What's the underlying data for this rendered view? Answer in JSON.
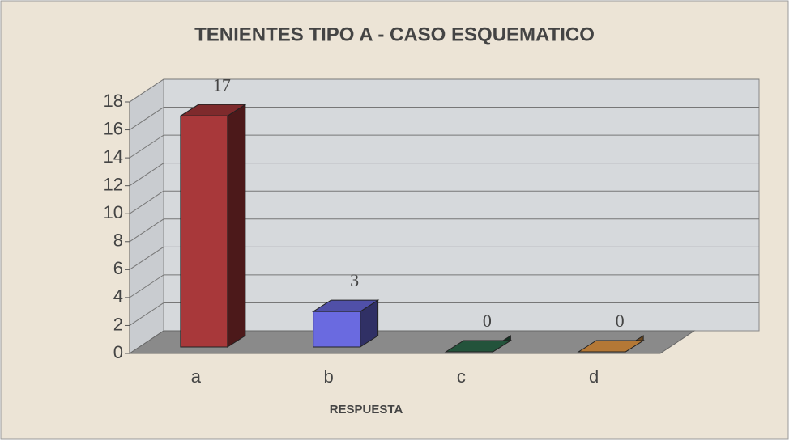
{
  "chart_data": {
    "type": "bar3d",
    "title": "TENIENTES TIPO A - CASO ESQUEMATICO",
    "x_label": "RESPUESTA",
    "categories": [
      "a",
      "b",
      "c",
      "d"
    ],
    "values": [
      17,
      3,
      0,
      0
    ],
    "colors": [
      "#a8383a",
      "#6a6ae0",
      "#2e6e4e",
      "#f0a048"
    ],
    "ylim": [
      0,
      18
    ],
    "yticks": [
      0,
      2,
      4,
      6,
      8,
      10,
      12,
      14,
      16,
      18
    ],
    "grid": true
  }
}
